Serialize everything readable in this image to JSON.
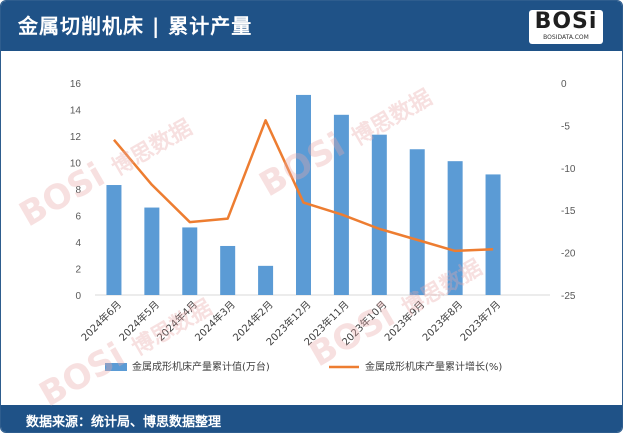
{
  "header": {
    "title": "金属切削机床 | 累计产量",
    "logo_text": "BOSi",
    "logo_sub": "BOSIDATA.COM",
    "accent": "#1f5287"
  },
  "watermark": {
    "brand": "BOSi",
    "text": "博思数据"
  },
  "footer": {
    "source": "数据来源：统计局、博思数据整理"
  },
  "chart_data": {
    "type": "bar",
    "categories": [
      "2024年6月",
      "2024年5月",
      "2024年4月",
      "2024年3月",
      "2024年2月",
      "2023年12月",
      "2023年11月",
      "2023年10月",
      "2023年9月",
      "2023年8月",
      "2023年7月"
    ],
    "series": [
      {
        "name": "金属成形机床产量累计值(万台)",
        "type": "bar",
        "axis": "left",
        "color": "#5b9bd5",
        "values": [
          8.3,
          6.6,
          5.1,
          3.7,
          2.2,
          15.1,
          13.6,
          12.1,
          11.0,
          10.1,
          9.1
        ]
      },
      {
        "name": "金属成形机床产量累计增长(%)",
        "type": "line",
        "axis": "right",
        "color": "#ed7d31",
        "values": [
          -6.7,
          -12.0,
          -16.4,
          -16.0,
          -4.4,
          -14.1,
          -15.5,
          -17.2,
          -18.5,
          -19.8,
          -19.6
        ]
      }
    ],
    "y_left": {
      "min": 0,
      "max": 16,
      "step": 2,
      "ticks": [
        "0",
        "2",
        "4",
        "6",
        "8",
        "10",
        "12",
        "14",
        "16"
      ]
    },
    "y_right": {
      "min": -25,
      "max": 0,
      "step": 5,
      "ticks": [
        "-25",
        "-20",
        "-15",
        "-10",
        "-5",
        "0"
      ]
    },
    "grid": false,
    "legend_position": "bottom"
  }
}
